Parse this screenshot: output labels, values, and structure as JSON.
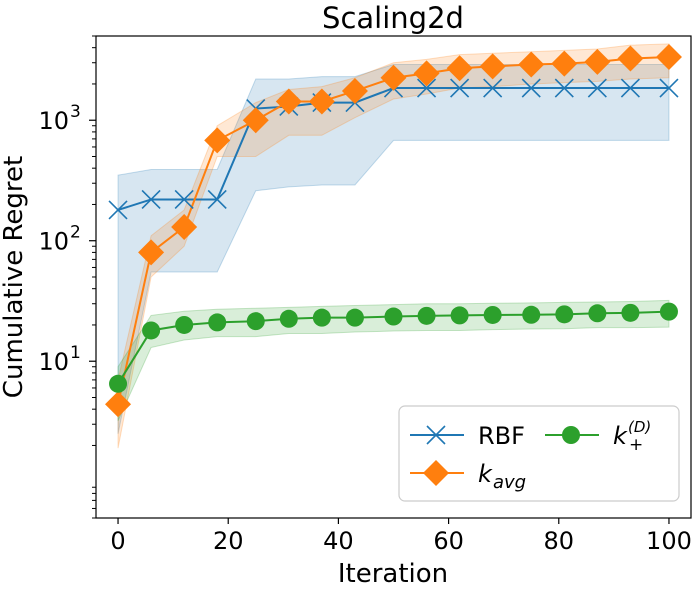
{
  "chart_data": {
    "type": "line",
    "title": "Scaling2d",
    "xlabel": "Iteration",
    "ylabel": "Cumulative Regret",
    "yscale": "log",
    "xlim": [
      -4,
      104
    ],
    "ylim": [
      0.5,
      5000
    ],
    "xticks": [
      0,
      20,
      40,
      60,
      80,
      100
    ],
    "xtick_labels": [
      "0",
      "20",
      "40",
      "60",
      "80",
      "100"
    ],
    "yticks": [
      10,
      100,
      1000
    ],
    "ytick_labels": [
      "10^1",
      "10^2",
      "10^3"
    ],
    "legend_position": "lower-right",
    "series": [
      {
        "name": "RBF",
        "color": "#1f77b4",
        "marker": "x",
        "x": [
          0,
          6,
          12,
          18,
          25,
          31,
          37,
          43,
          50,
          56,
          62,
          68,
          75,
          81,
          87,
          93,
          100
        ],
        "y": [
          180,
          220,
          220,
          220,
          1250,
          1300,
          1400,
          1400,
          1850,
          1850,
          1850,
          1850,
          1850,
          1850,
          1850,
          1850,
          1850
        ],
        "lower": [
          2.5,
          55,
          55,
          55,
          260,
          280,
          290,
          290,
          680,
          680,
          680,
          680,
          680,
          680,
          680,
          680,
          680
        ],
        "upper": [
          350,
          390,
          390,
          390,
          2200,
          2200,
          2300,
          2300,
          2900,
          2900,
          2900,
          2900,
          2900,
          2900,
          2900,
          2900,
          2900
        ]
      },
      {
        "name": "k_avg",
        "color": "#ff7f0e",
        "marker": "diamond",
        "x": [
          0,
          6,
          12,
          18,
          25,
          31,
          37,
          43,
          50,
          56,
          62,
          68,
          75,
          81,
          87,
          93,
          100
        ],
        "y": [
          4.4,
          80,
          130,
          680,
          1000,
          1430,
          1430,
          1750,
          2250,
          2450,
          2700,
          2800,
          2900,
          2950,
          3050,
          3250,
          3350
        ],
        "lower": [
          1.9,
          50,
          90,
          500,
          500,
          750,
          750,
          1050,
          1500,
          1650,
          1850,
          1900,
          2000,
          2050,
          2100,
          2200,
          2250
        ],
        "upper": [
          7,
          110,
          180,
          900,
          1400,
          1800,
          1900,
          2250,
          3000,
          3200,
          3500,
          3600,
          3700,
          3800,
          3900,
          4200,
          4300
        ]
      },
      {
        "name": "k_+^(D)",
        "color": "#2ca02c",
        "marker": "circle",
        "x": [
          0,
          6,
          12,
          18,
          25,
          31,
          37,
          43,
          50,
          56,
          62,
          68,
          75,
          81,
          87,
          93,
          100
        ],
        "y": [
          6.5,
          18,
          20,
          21,
          21.5,
          22.5,
          23,
          23,
          23.5,
          23.8,
          24,
          24.2,
          24.3,
          24.5,
          25,
          25.2,
          25.8
        ],
        "lower": [
          3.2,
          13,
          15,
          16,
          16,
          17,
          17,
          17.5,
          17.8,
          18,
          18,
          18.3,
          18.5,
          18.6,
          19,
          19,
          19.2
        ],
        "upper": [
          9,
          24,
          26,
          27,
          27.5,
          28,
          28.5,
          29,
          29.5,
          30,
          30,
          30.3,
          30.5,
          30.8,
          31,
          31.3,
          32
        ]
      }
    ]
  }
}
